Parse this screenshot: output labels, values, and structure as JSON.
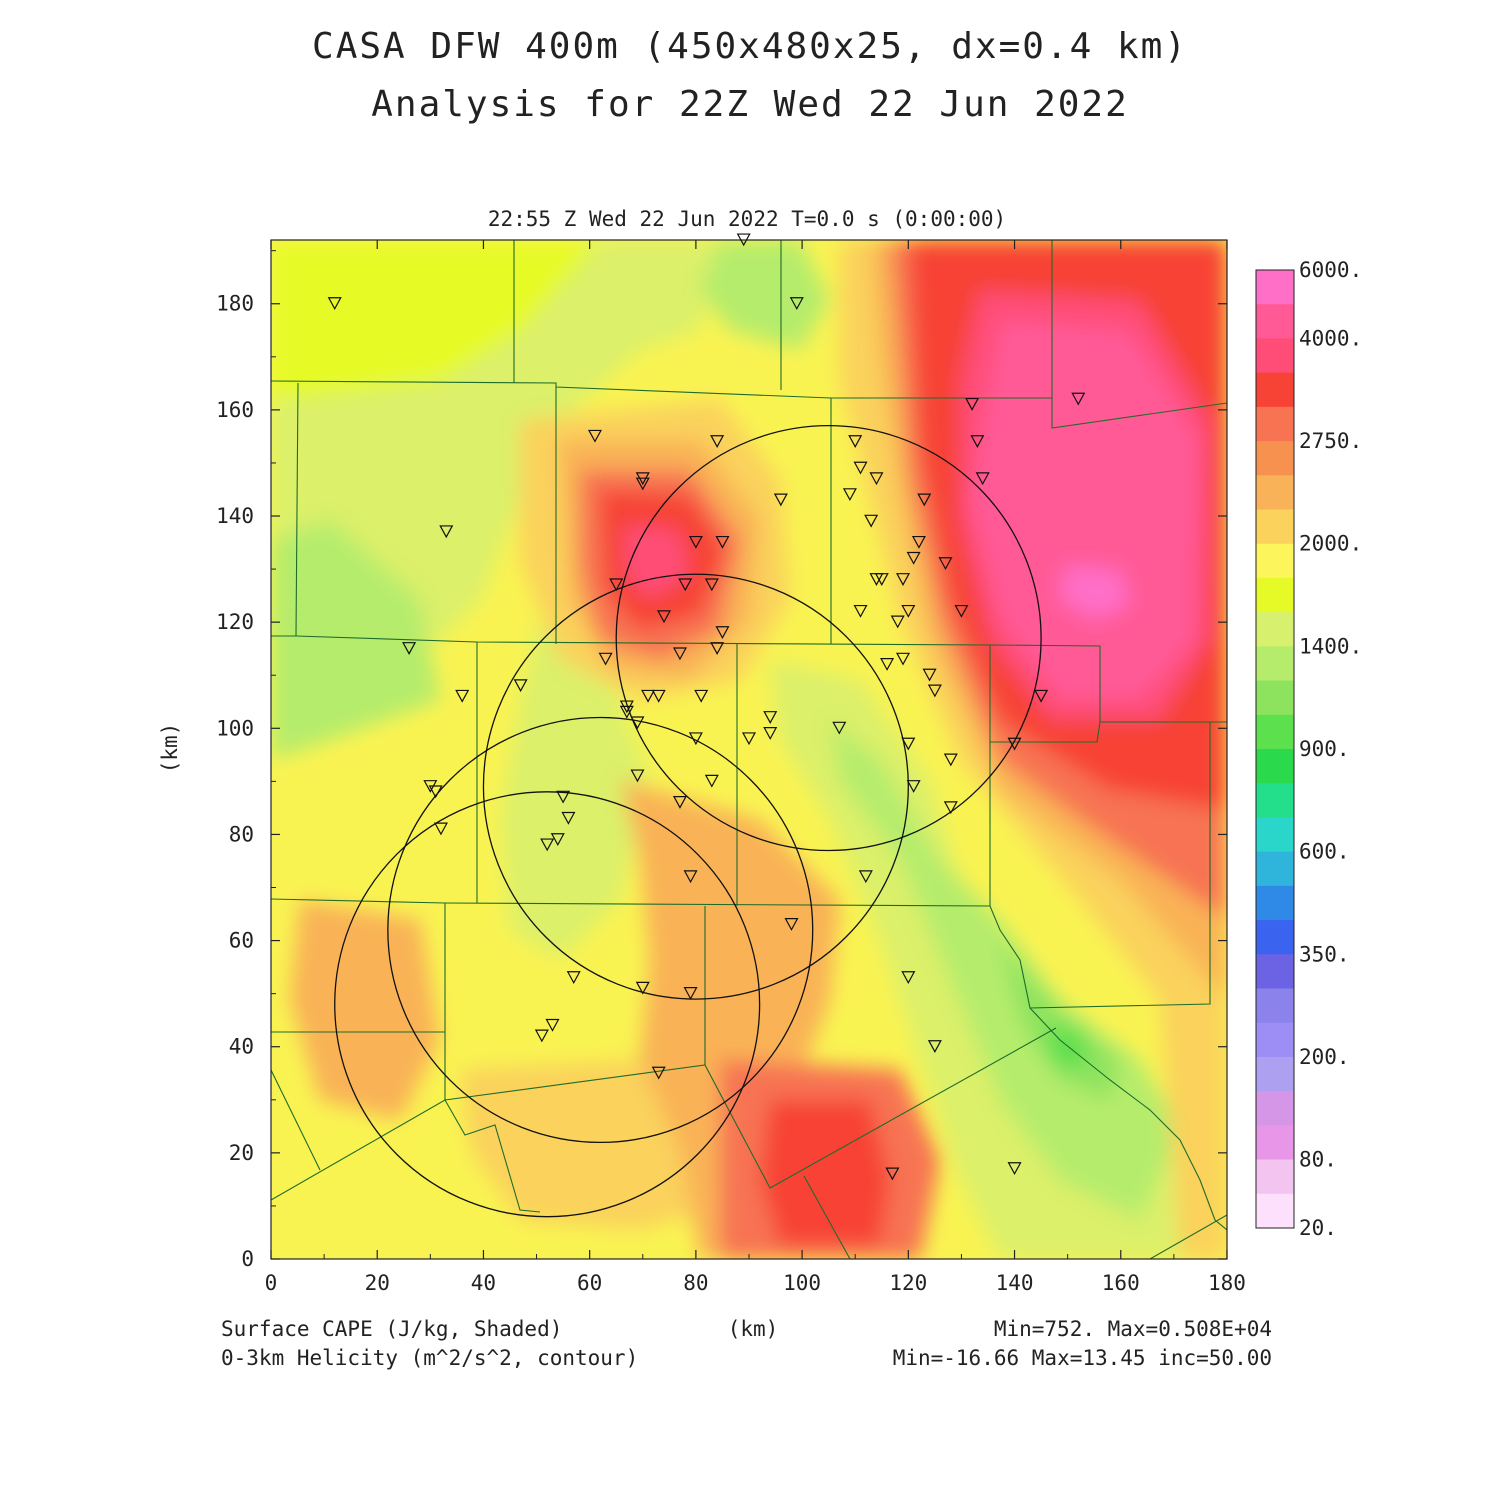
{
  "title_line1": "CASA DFW 400m (450x480x25, dx=0.4 km)",
  "title_line2": "Analysis for 22Z Wed 22 Jun 2022",
  "subtitle": "22:55 Z Wed 22 Jun 2022   T=0.0 s (0:00:00)",
  "y_axis_label": "(km)",
  "x_axis_label": "(km)",
  "x_ticks": [
    "0",
    "20",
    "40",
    "60",
    "80",
    "100",
    "120",
    "140",
    "160",
    "180"
  ],
  "y_ticks": [
    "0",
    "20",
    "40",
    "60",
    "80",
    "100",
    "120",
    "140",
    "160",
    "180"
  ],
  "colorbar": {
    "labels": [
      "6000.",
      "4000.",
      "2750.",
      "2000.",
      "1400.",
      "900.",
      "600.",
      "350.",
      "200.",
      "80.",
      "20."
    ],
    "colors": [
      "#ff6ec7",
      "#ff5a96",
      "#ff4d78",
      "#f74336",
      "#f77352",
      "#f7914f",
      "#f9b257",
      "#fad25c",
      "#fcf65c",
      "#e6fa28",
      "#d7f06e",
      "#b5ec6c",
      "#8ee35e",
      "#5ce04d",
      "#2ad94c",
      "#23df8c",
      "#29d6c9",
      "#2fb5dc",
      "#2e8ae6",
      "#3a63f0",
      "#6b63e3",
      "#8c82ec",
      "#9c8ef5",
      "#aea0f0",
      "#d596e8",
      "#e896e8",
      "#f4c4f0",
      "#fde0fb"
    ]
  },
  "footer": {
    "left1": "Surface CAPE (J/kg, Shaded)",
    "left2": "0-3km Helicity (m^2/s^2, contour)",
    "right1": "Min=752. Max=0.508E+04",
    "right2": "Min=-16.66 Max=13.45 inc=50.00"
  },
  "radar_stations_km": [
    {
      "x": 62,
      "y": 62
    },
    {
      "x": 52,
      "y": 48
    },
    {
      "x": 80,
      "y": 89
    },
    {
      "x": 105,
      "y": 117
    }
  ],
  "radar_range_km": 40,
  "observation_sites_km": [
    [
      12,
      180
    ],
    [
      89,
      192
    ],
    [
      99,
      180
    ],
    [
      152,
      162
    ],
    [
      132,
      161
    ],
    [
      133,
      154
    ],
    [
      134,
      147
    ],
    [
      61,
      155
    ],
    [
      70,
      147
    ],
    [
      70,
      146
    ],
    [
      84,
      154
    ],
    [
      110,
      154
    ],
    [
      111,
      149
    ],
    [
      114,
      147
    ],
    [
      109,
      144
    ],
    [
      96,
      143
    ],
    [
      113,
      139
    ],
    [
      123,
      143
    ],
    [
      33,
      137
    ],
    [
      80,
      135
    ],
    [
      85,
      135
    ],
    [
      122,
      135
    ],
    [
      121,
      132
    ],
    [
      127,
      131
    ],
    [
      65,
      127
    ],
    [
      78,
      127
    ],
    [
      83,
      127
    ],
    [
      114,
      128
    ],
    [
      115,
      128
    ],
    [
      119,
      128
    ],
    [
      74,
      121
    ],
    [
      111,
      122
    ],
    [
      120,
      122
    ],
    [
      130,
      122
    ],
    [
      118,
      120
    ],
    [
      85,
      118
    ],
    [
      84,
      115
    ],
    [
      26,
      115
    ],
    [
      63,
      113
    ],
    [
      77,
      114
    ],
    [
      116,
      112
    ],
    [
      119,
      113
    ],
    [
      124,
      110
    ],
    [
      125,
      107
    ],
    [
      47,
      108
    ],
    [
      36,
      106
    ],
    [
      67,
      104
    ],
    [
      67,
      103
    ],
    [
      71,
      106
    ],
    [
      73,
      106
    ],
    [
      81,
      106
    ],
    [
      145,
      106
    ],
    [
      69,
      101
    ],
    [
      94,
      102
    ],
    [
      94,
      99
    ],
    [
      107,
      100
    ],
    [
      90,
      98
    ],
    [
      80,
      98
    ],
    [
      120,
      97
    ],
    [
      128,
      94
    ],
    [
      140,
      97
    ],
    [
      30,
      89
    ],
    [
      31,
      88
    ],
    [
      69,
      91
    ],
    [
      83,
      90
    ],
    [
      121,
      89
    ],
    [
      55,
      87
    ],
    [
      56,
      83
    ],
    [
      77,
      86
    ],
    [
      128,
      85
    ],
    [
      32,
      81
    ],
    [
      54,
      79
    ],
    [
      52,
      78
    ],
    [
      79,
      72
    ],
    [
      112,
      72
    ],
    [
      98,
      63
    ],
    [
      57,
      53
    ],
    [
      70,
      51
    ],
    [
      79,
      50
    ],
    [
      120,
      53
    ],
    [
      53,
      44
    ],
    [
      51,
      42
    ],
    [
      125,
      40
    ],
    [
      73,
      35
    ],
    [
      117,
      16
    ],
    [
      140,
      17
    ]
  ]
}
